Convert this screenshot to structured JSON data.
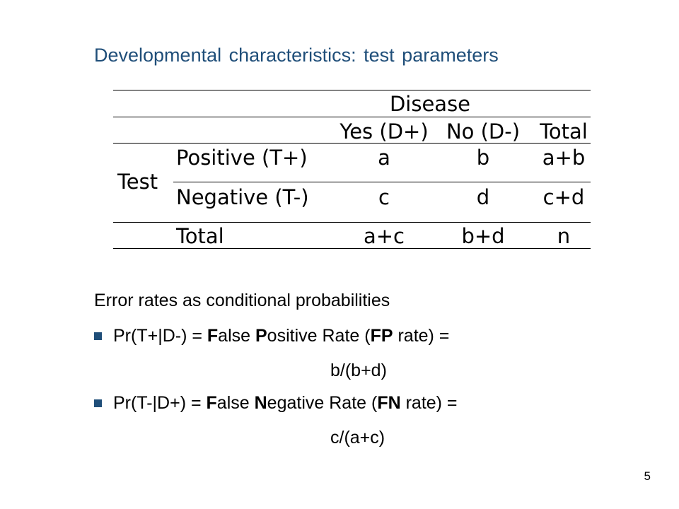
{
  "title": "Developmental characteristics: test parameters",
  "table": {
    "disease_header": "Disease",
    "col_yes": "Yes (D+)",
    "col_no": "No (D-)",
    "col_total": "Total",
    "test_label": "Test",
    "row_pos": {
      "label": "Positive (T+)",
      "yes": "a",
      "no": "b",
      "total": "a+b"
    },
    "row_neg": {
      "label": "Negative (T-)",
      "yes": "c",
      "no": "d",
      "total": "c+d"
    },
    "row_total": {
      "label": "Total",
      "yes": "a+c",
      "no": "b+d",
      "total": "n"
    }
  },
  "body": {
    "heading": "Error rates as conditional probabilities",
    "bullet1": {
      "p1": "Pr(T+|D-) = ",
      "b1": "F",
      "p2": "alse ",
      "b2": "P",
      "p3": "ositive Rate (",
      "b3": "FP",
      "p4": " rate) =",
      "formula": "b/(b+d)"
    },
    "bullet2": {
      "p1": "Pr(T-|D+) =  ",
      "b1": "F",
      "p2": "alse ",
      "b2": "N",
      "p3": "egative Rate (",
      "b3": "FN",
      "p4": " rate) =",
      "formula": "c/(a+c)"
    }
  },
  "page_number": "5",
  "colors": {
    "title": "#1f4e79",
    "bullet": "#1f4e79"
  }
}
